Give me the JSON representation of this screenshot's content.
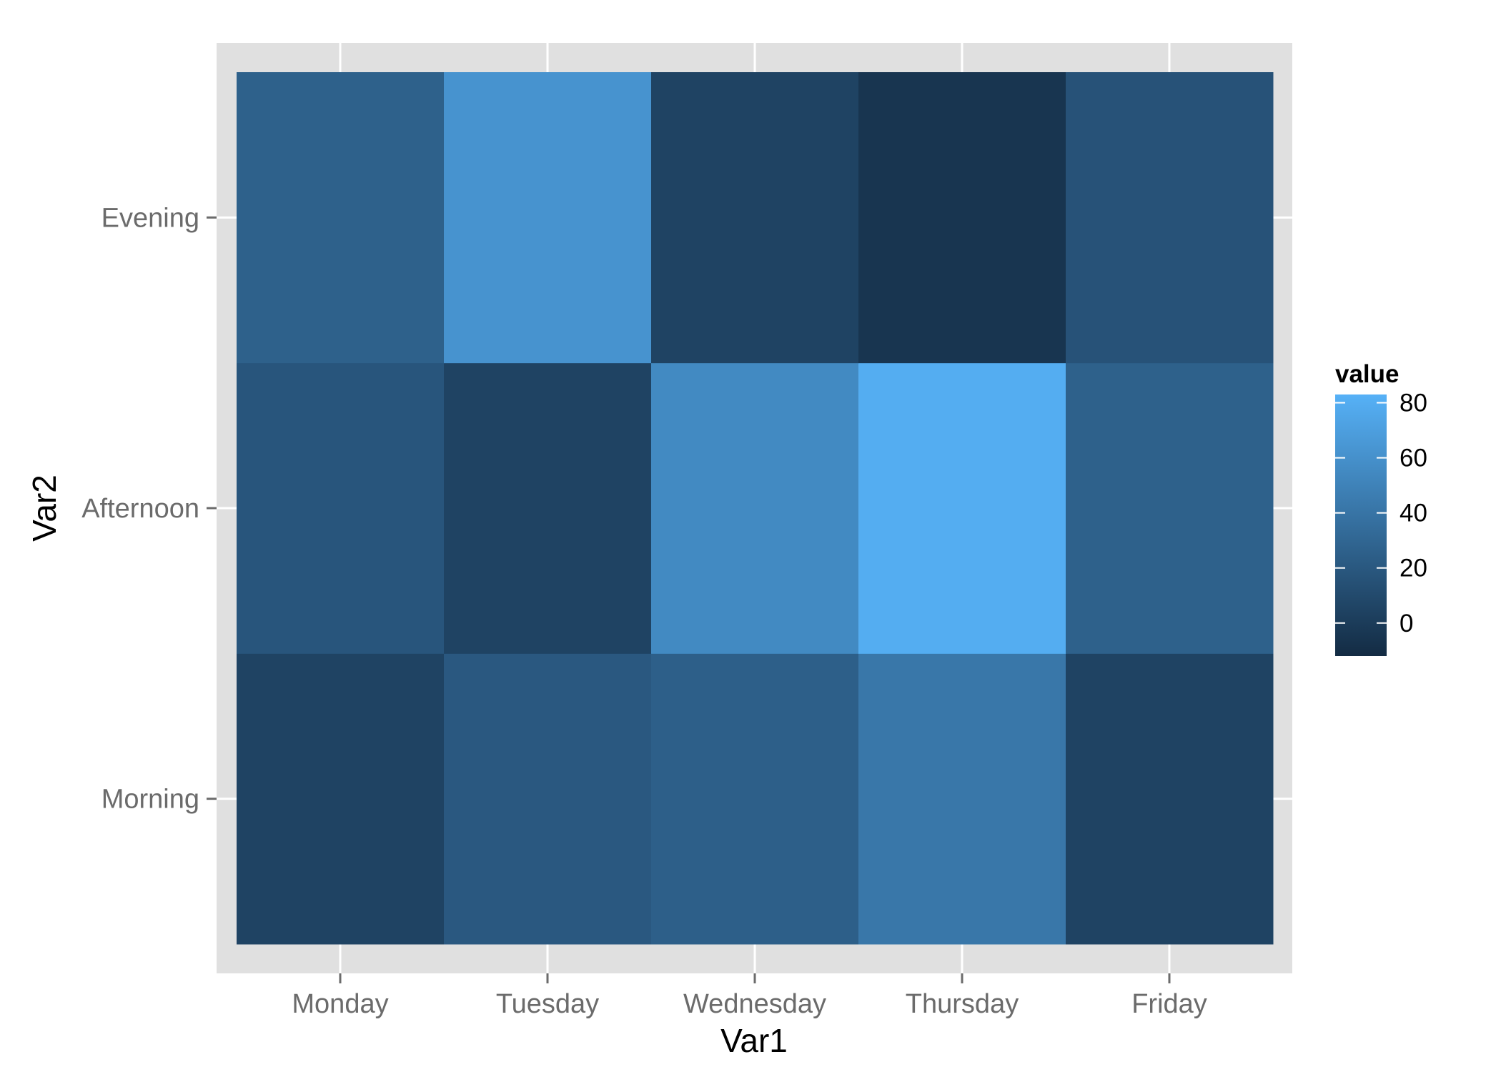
{
  "chart_data": {
    "type": "heatmap",
    "title": "",
    "xlabel": "Var1",
    "ylabel": "Var2",
    "x_categories": [
      "Monday",
      "Tuesday",
      "Wednesday",
      "Thursday",
      "Friday"
    ],
    "y_categories": [
      "Morning",
      "Afternoon",
      "Evening"
    ],
    "values": [
      [
        5,
        20,
        25,
        42,
        5
      ],
      [
        18,
        5,
        55,
        80,
        26
      ],
      [
        26,
        62,
        5,
        -5,
        16
      ]
    ],
    "legend": {
      "title": "value",
      "ticks": [
        0,
        20,
        40,
        60,
        80
      ],
      "tick_labels": [
        "0",
        "20",
        "40",
        "60",
        "80"
      ],
      "range": [
        -12,
        83
      ],
      "low_color": "#132B43",
      "high_color": "#56B1F7",
      "placement": "right"
    },
    "panel_background": "#e0e0e0",
    "grid": true,
    "grid_color": "#ffffff"
  }
}
